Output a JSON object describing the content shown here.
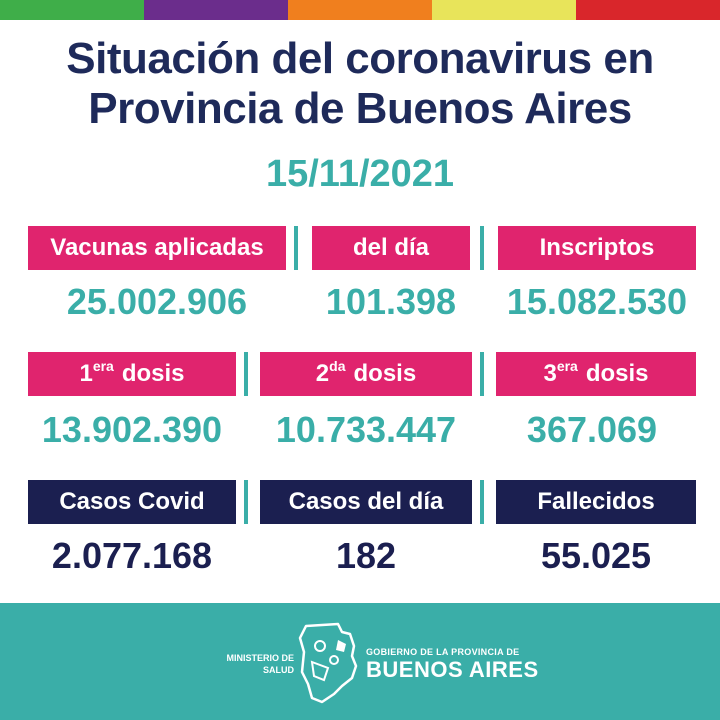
{
  "colors": {
    "stripes": [
      "#3fae49",
      "#6b2d8c",
      "#f07f1e",
      "#e8e45a",
      "#d9262b"
    ],
    "title": "#1e2a5a",
    "accent_teal": "#3aaea8",
    "pink": "#e0246e",
    "navy": "#1b1f50"
  },
  "header": {
    "title_line1": "Situación del coronavirus en",
    "title_line2": "Provincia de Buenos Aires",
    "date": "15/11/2021"
  },
  "vaccines": {
    "applied_label": "Vacunas aplicadas",
    "applied_value": "25.002.906",
    "day_label": "del día",
    "day_value": "101.398",
    "registered_label": "Inscriptos",
    "registered_value": "15.082.530"
  },
  "doses": {
    "first_num": "1",
    "first_sup": "era",
    "first_word": "dosis",
    "first_value": "13.902.390",
    "second_num": "2",
    "second_sup": "da",
    "second_word": "dosis",
    "second_value": "10.733.447",
    "third_num": "3",
    "third_sup": "era",
    "third_word": "dosis",
    "third_value": "367.069"
  },
  "cases": {
    "total_label": "Casos Covid",
    "total_value": "2.077.168",
    "day_label": "Casos del día",
    "day_value": "182",
    "deaths_label": "Fallecidos",
    "deaths_value": "55.025"
  },
  "footer": {
    "ministry_line1": "MINISTERIO DE",
    "ministry_line2": "SALUD",
    "gov_line1": "GOBIERNO DE LA PROVINCIA DE",
    "gov_line2": "BUENOS AIRES"
  }
}
